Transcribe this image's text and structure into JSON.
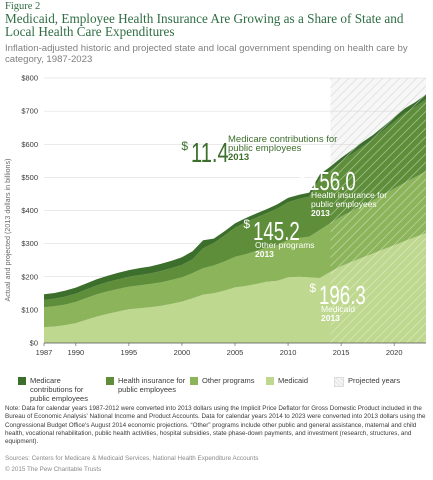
{
  "figure_label": "Figure 2",
  "title": "Medicaid, Employee Health Insurance Are Growing as a Share of State and Local Health Care Expenditures",
  "subtitle": "Inflation-adjusted historic and projected state and local government spending on health care by category, 1987-2023",
  "chart_data": {
    "type": "area",
    "stacked": true,
    "ylabel": "Actual and projected (2013 dollars in billions)",
    "ylim": [
      0,
      800
    ],
    "yticks": [
      0,
      100,
      200,
      300,
      400,
      500,
      600,
      700,
      800
    ],
    "ytick_labels": [
      "$0",
      "$100",
      "$200",
      "$300",
      "$400",
      "$500",
      "$600",
      "$700",
      "$800"
    ],
    "xlim": [
      1987,
      2023
    ],
    "xtick_labels": [
      "1987",
      "1990",
      "1995",
      "2000",
      "2005",
      "2010",
      "2015",
      "2020"
    ],
    "xticks": [
      1987,
      1990,
      1995,
      2000,
      2005,
      2010,
      2015,
      2020
    ],
    "grid": true,
    "projected_from": 2014,
    "projected_label": "Projected years",
    "x": [
      1987,
      1988,
      1989,
      1990,
      1991,
      1992,
      1993,
      1994,
      1995,
      1996,
      1997,
      1998,
      1999,
      2000,
      2001,
      2002,
      2003,
      2004,
      2005,
      2006,
      2007,
      2008,
      2009,
      2010,
      2011,
      2012,
      2013,
      2014,
      2015,
      2016,
      2017,
      2018,
      2019,
      2020,
      2021,
      2022,
      2023
    ],
    "series": [
      {
        "name": "Medicaid",
        "color": "#bfd88f",
        "values": [
          48,
          50,
          54,
          60,
          70,
          80,
          88,
          95,
          102,
          105,
          108,
          112,
          118,
          125,
          135,
          146,
          150,
          158,
          168,
          172,
          178,
          185,
          188,
          198,
          200,
          198,
          196.3,
          215,
          232,
          245,
          258,
          270,
          283,
          295,
          308,
          320,
          332
        ]
      },
      {
        "name": "Other programs",
        "color": "#8cb45a",
        "values": [
          60,
          61,
          62,
          64,
          66,
          67,
          68,
          68,
          68,
          69,
          70,
          71,
          72,
          73,
          76,
          80,
          84,
          88,
          92,
          96,
          100,
          103,
          108,
          113,
          117,
          123,
          145.2,
          147,
          150,
          153,
          157,
          161,
          166,
          171,
          176,
          181,
          186
        ]
      },
      {
        "name": "Health insurance for public employees",
        "color": "#5e8e3a",
        "values": [
          22,
          23,
          24,
          25,
          26,
          27,
          28,
          29,
          30,
          31,
          32,
          34,
          36,
          38,
          42,
          60,
          68,
          78,
          88,
          96,
          100,
          104,
          110,
          114,
          118,
          121,
          156,
          159,
          165,
          172,
          178,
          184,
          192,
          202,
          210,
          212,
          218
        ]
      },
      {
        "name": "Medicare contributions for public employees",
        "color": "#3c6e2c",
        "values": [
          17,
          17,
          18,
          18,
          18,
          19,
          19,
          20,
          20,
          21,
          21,
          22,
          22,
          23,
          24,
          24,
          13,
          13,
          13,
          13,
          13,
          12,
          13,
          13,
          12,
          12,
          11.4,
          12,
          12,
          12,
          13,
          13,
          13,
          13,
          14,
          14,
          14
        ]
      }
    ],
    "annotations": [
      {
        "dollar": "$",
        "value": "11.4",
        "label": "Medicare contributions for public employees",
        "year": "2013",
        "series": "Medicare contributions for public employees"
      },
      {
        "dollar": "$",
        "value": "156.0",
        "label": "Health insurance for public employees",
        "year": "2013",
        "series": "Health insurance for public employees"
      },
      {
        "dollar": "$",
        "value": "145.2",
        "label": "Other programs",
        "year": "2013",
        "series": "Other programs"
      },
      {
        "dollar": "$",
        "value": "196.3",
        "label": "Medicaid",
        "year": "2013",
        "series": "Medicaid"
      }
    ]
  },
  "legend": [
    {
      "label": "Medicare contributions for public employees",
      "color": "#3c6e2c"
    },
    {
      "label": "Health insurance for public employees",
      "color": "#5e8e3a"
    },
    {
      "label": "Other programs",
      "color": "#8cb45a"
    },
    {
      "label": "Medicaid",
      "color": "#bfd88f"
    },
    {
      "label": "Projected years",
      "color": "#eeeeee"
    }
  ],
  "note": "Note: Data for calendar years 1987-2012 were converted into 2013 dollars using the Implicit Price Deflator for Gross Domestic Product included in the Bureau of Economic Analysis' National Income and Product Accounts. Data for calendar years 2014 to 2023 were converted into 2013 dollars using the Congressional Budget Office's August 2014 economic projections. “Other” programs include other public and general assistance, maternal and child health, vocational rehabilitation, public health activities, hospital subsidies, state phase-down payments, and investment (research, structures, and equipment).",
  "sources": "Sources: Centers for Medicare & Medicaid Services, National Health Expenditure Accounts",
  "copyright": "© 2015 The Pew Charitable Trusts"
}
